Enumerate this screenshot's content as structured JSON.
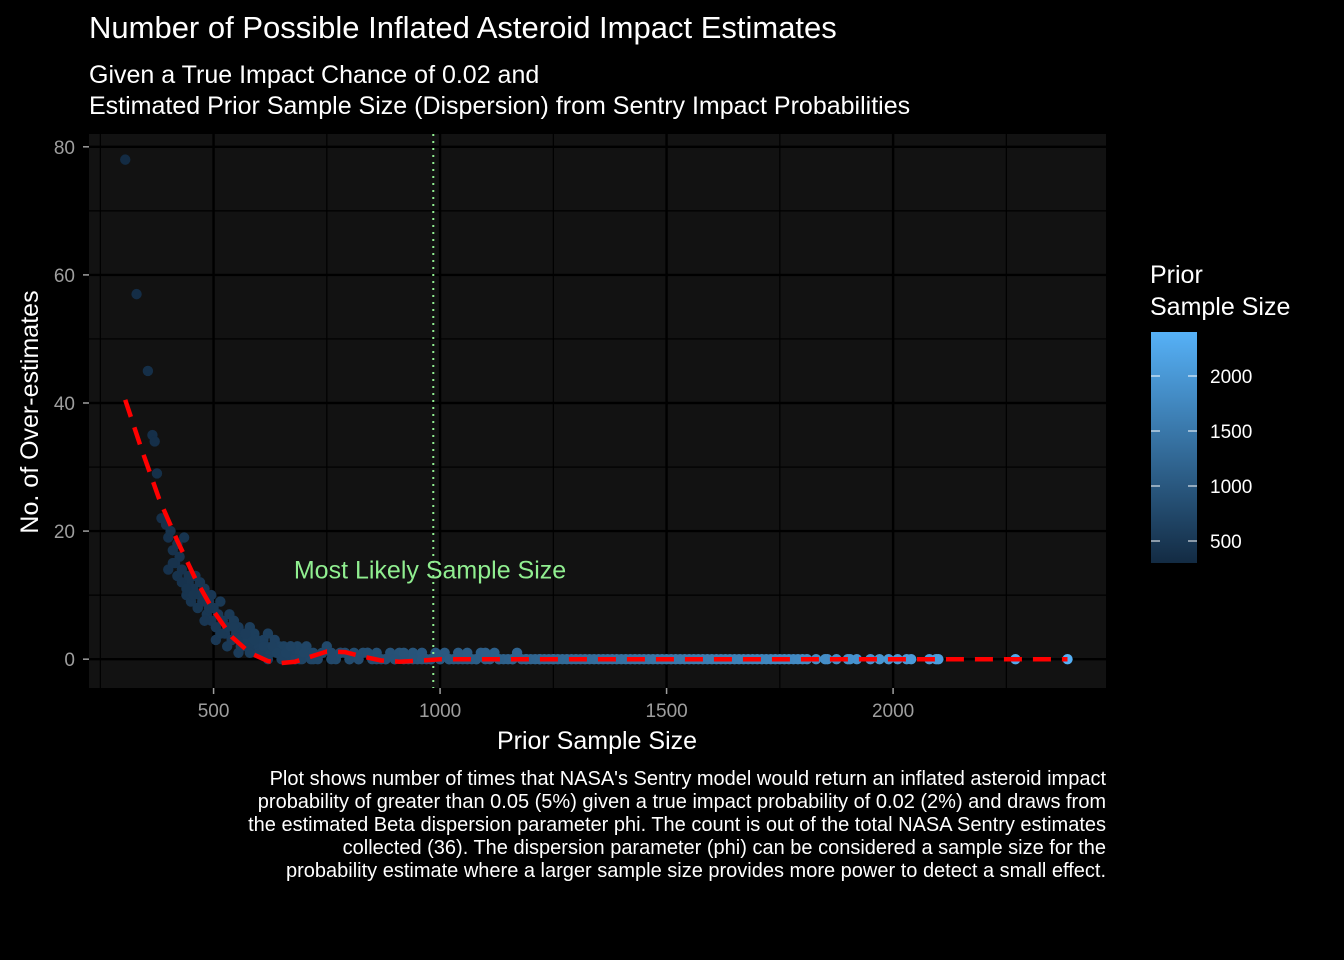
{
  "chart_data": {
    "type": "scatter",
    "title": "Number of Possible Inflated Asteroid Impact Estimates",
    "subtitle_lines": [
      "Given a True Impact Chance of 0.02 and",
      "Estimated Prior Sample Size (Dispersion) from Sentry Impact Probabilities"
    ],
    "xlabel": "Prior Sample Size",
    "ylabel": "No. of Over-estimates",
    "xlim": [
      225,
      2470
    ],
    "ylim": [
      -4.5,
      82
    ],
    "x_ticks": [
      500,
      1000,
      1500,
      2000
    ],
    "y_ticks": [
      0,
      20,
      40,
      60,
      80
    ],
    "grid": true,
    "legend": {
      "title_lines": [
        "Prior",
        "Sample Size"
      ],
      "position": "right",
      "breaks": [
        500,
        1000,
        1500,
        2000
      ],
      "range": [
        300,
        2400
      ],
      "color_low": "#132B43",
      "color_high": "#56B1F7"
    },
    "annotation": {
      "text": "Most Likely Sample Size",
      "x": 980,
      "y": 14,
      "color": "#90EE90"
    },
    "vline": {
      "x": 985,
      "color": "#90EE90",
      "style": "dotted"
    },
    "smooth": {
      "color": "#FF0000",
      "style": "dashed",
      "x": [
        305,
        340,
        380,
        420,
        460,
        500,
        540,
        580,
        620,
        650,
        680,
        710,
        750,
        790,
        830,
        870,
        910,
        960,
        1000,
        1200,
        1400,
        1600,
        1800,
        2000,
        2200,
        2385
      ],
      "y": [
        40.5,
        33,
        25,
        18.5,
        12.5,
        7.5,
        3.5,
        1.0,
        -0.3,
        -0.6,
        -0.4,
        0.3,
        1.2,
        1.1,
        0.4,
        -0.2,
        -0.4,
        -0.2,
        0.0,
        0.0,
        0.0,
        0.0,
        0.0,
        0.0,
        0.0,
        0.0
      ]
    },
    "points": {
      "x": [
        305,
        330,
        355,
        365,
        370,
        375,
        385,
        395,
        400,
        405,
        410,
        415,
        420,
        425,
        430,
        435,
        440,
        445,
        450,
        455,
        460,
        465,
        470,
        475,
        480,
        485,
        490,
        495,
        500,
        505,
        510,
        515,
        520,
        525,
        530,
        535,
        540,
        545,
        550,
        555,
        560,
        565,
        570,
        575,
        580,
        585,
        590,
        595,
        600,
        605,
        610,
        615,
        620,
        625,
        630,
        635,
        640,
        645,
        650,
        655,
        660,
        665,
        670,
        675,
        680,
        685,
        690,
        695,
        700,
        705,
        710,
        715,
        720,
        730,
        740,
        750,
        760,
        770,
        780,
        790,
        800,
        810,
        820,
        830,
        840,
        850,
        860,
        870,
        880,
        890,
        900,
        910,
        920,
        930,
        940,
        950,
        960,
        970,
        980,
        990,
        1000,
        1010,
        1020,
        1030,
        1040,
        1050,
        1060,
        1070,
        1080,
        1090,
        1100,
        1110,
        1120,
        1130,
        1140,
        1150,
        1160,
        1170,
        1180,
        1190,
        1200,
        1210,
        1220,
        1230,
        1240,
        1250,
        1260,
        1270,
        1280,
        1290,
        1300,
        1310,
        1320,
        1330,
        1340,
        1350,
        1360,
        1370,
        1380,
        1390,
        1400,
        1410,
        1420,
        1430,
        1440,
        1450,
        1460,
        1470,
        1480,
        1490,
        1500,
        1510,
        1520,
        1530,
        1540,
        1550,
        1560,
        1570,
        1580,
        1590,
        1600,
        1610,
        1620,
        1630,
        1640,
        1650,
        1660,
        1670,
        1680,
        1690,
        1700,
        1710,
        1720,
        1730,
        1740,
        1750,
        1760,
        1770,
        1780,
        1790,
        1800,
        1810,
        1830,
        1850,
        1855,
        1875,
        1900,
        1905,
        1920,
        1950,
        1970,
        1990,
        2010,
        2030,
        2040,
        2080,
        2095,
        2100,
        2270,
        2385,
        400,
        410,
        420,
        430,
        440,
        445,
        455,
        465,
        470,
        480,
        490,
        495,
        505,
        515,
        520,
        530,
        540,
        545,
        555,
        560,
        570,
        580,
        590,
        600,
        610,
        620,
        630,
        640,
        650,
        660,
        670,
        680,
        690,
        700,
        720,
        740,
        760,
        780,
        800,
        820,
        840,
        860,
        880,
        900,
        920,
        940,
        960,
        980,
        1000,
        1020,
        1040,
        1060,
        1080,
        1100,
        1130,
        1160,
        1190,
        1220,
        1250
      ],
      "y": [
        78,
        57,
        45,
        35,
        34,
        29,
        22,
        21,
        19,
        20,
        17,
        15,
        18,
        16,
        14,
        19,
        10,
        12,
        9,
        11,
        13,
        8,
        10,
        9,
        11,
        7,
        9,
        6,
        8,
        5,
        7,
        9,
        6,
        4,
        5,
        7,
        3,
        6,
        4,
        5,
        3,
        2,
        4,
        3,
        5,
        2,
        4,
        3,
        2,
        1,
        3,
        2,
        4,
        1,
        2,
        3,
        1,
        2,
        1,
        2,
        0,
        1,
        2,
        1,
        0,
        2,
        1,
        0,
        1,
        2,
        1,
        0,
        1,
        0,
        1,
        2,
        1,
        0,
        1,
        1,
        0,
        1,
        0,
        1,
        1,
        0,
        1,
        0,
        0,
        1,
        0,
        1,
        0,
        0,
        1,
        0,
        1,
        0,
        0,
        1,
        0,
        1,
        0,
        0,
        1,
        0,
        1,
        0,
        0,
        1,
        0,
        0,
        1,
        0,
        0,
        0,
        0,
        1,
        0,
        0,
        0,
        0,
        0,
        0,
        0,
        0,
        0,
        0,
        0,
        0,
        0,
        0,
        0,
        0,
        0,
        0,
        0,
        0,
        0,
        0,
        0,
        0,
        0,
        0,
        0,
        0,
        0,
        0,
        0,
        0,
        0,
        0,
        0,
        0,
        0,
        0,
        0,
        0,
        0,
        0,
        0,
        0,
        0,
        0,
        0,
        0,
        0,
        0,
        0,
        0,
        0,
        0,
        0,
        0,
        0,
        0,
        0,
        0,
        0,
        0,
        0,
        0,
        0,
        0,
        0,
        0,
        0,
        0,
        0,
        0,
        0,
        0,
        0,
        0,
        0,
        0,
        0,
        0,
        0,
        0,
        14,
        15,
        13,
        12,
        11,
        13,
        10,
        8,
        12,
        6,
        8,
        10,
        3,
        4,
        6,
        2,
        3,
        5,
        1,
        2,
        4,
        1,
        3,
        1,
        2,
        0,
        2,
        1,
        0,
        1,
        2,
        0,
        0,
        1,
        0,
        1,
        0,
        1,
        0,
        0,
        1,
        0,
        0,
        0,
        1,
        0,
        0,
        0,
        0,
        0,
        0,
        0,
        0,
        1,
        0,
        0,
        0,
        0,
        0
      ]
    },
    "caption": "Plot shows number of times that NASA's Sentry model would return an inflated asteroid impact probability of greater than 0.05 (5%) given a true impact probability of 0.02 (2%) and draws from the estimated Beta dispersion parameter phi. The count is out of the total NASA Sentry estimates collected (36). The dispersion parameter (phi) can be considered a sample size for the probability estimate where a larger sample size provides more power to detect a small effect."
  }
}
